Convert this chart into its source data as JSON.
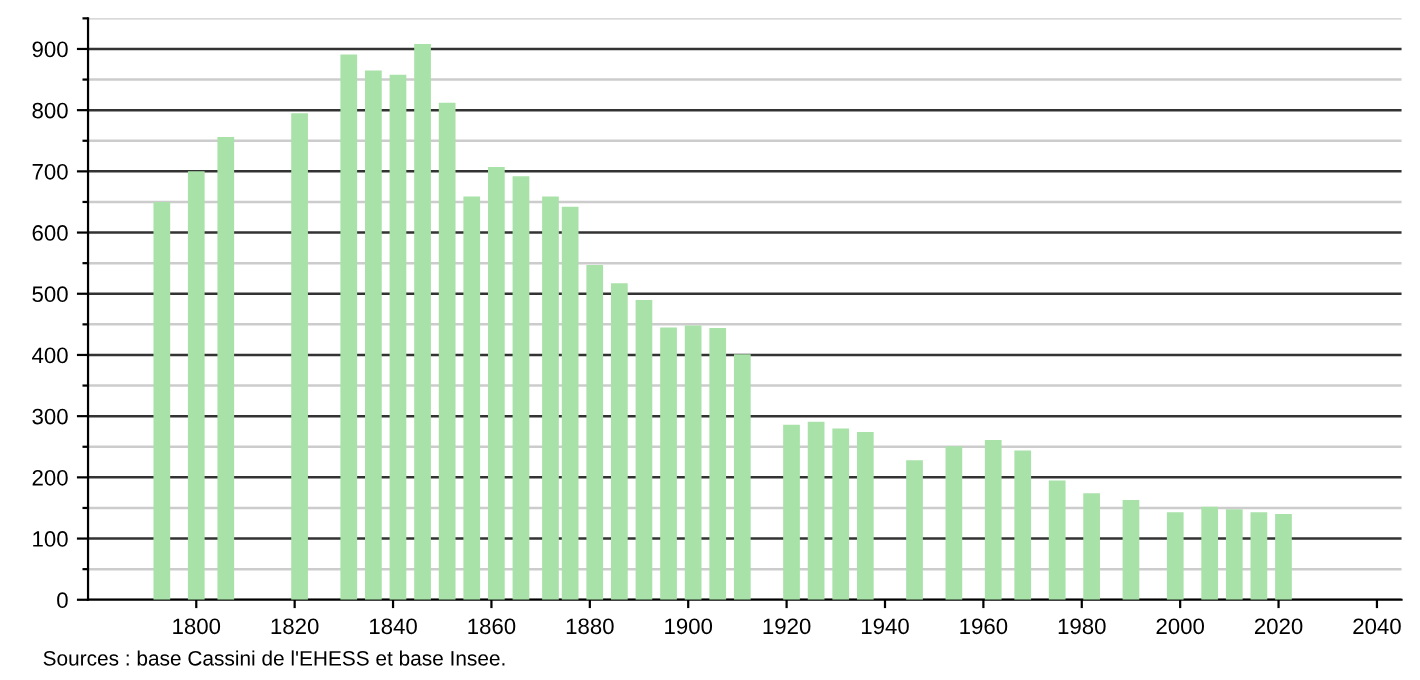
{
  "chart_data": {
    "type": "bar",
    "x": [
      1793,
      1800,
      1806,
      1821,
      1831,
      1836,
      1841,
      1846,
      1851,
      1856,
      1861,
      1866,
      1872,
      1876,
      1881,
      1886,
      1891,
      1896,
      1901,
      1906,
      1911,
      1921,
      1926,
      1931,
      1936,
      1946,
      1954,
      1962,
      1968,
      1975,
      1982,
      1990,
      1999,
      2006,
      2011,
      2016,
      2021
    ],
    "values": [
      650,
      700,
      756,
      795,
      891,
      865,
      858,
      908,
      812,
      659,
      707,
      692,
      659,
      642,
      547,
      517,
      490,
      445,
      448,
      444,
      401,
      286,
      291,
      280,
      274,
      228,
      251,
      261,
      244,
      195,
      174,
      163,
      143,
      152,
      148,
      143,
      140
    ],
    "color": "#a8e2a8",
    "xlim": [
      1778,
      2045
    ],
    "xticks": [
      1800,
      1820,
      1840,
      1860,
      1880,
      1900,
      1920,
      1940,
      1960,
      1980,
      2000,
      2020,
      2040
    ],
    "ylim": [
      0,
      950
    ],
    "yticks": [
      0,
      {
        "value": 50,
        "label": null
      },
      100,
      {
        "value": 150,
        "label": null
      },
      200,
      {
        "value": 250,
        "label": null
      },
      300,
      {
        "value": 350,
        "label": null
      },
      400,
      {
        "value": 450,
        "label": null
      },
      500,
      {
        "value": 550,
        "label": null
      },
      600,
      {
        "value": 650,
        "label": null
      },
      700,
      {
        "value": 750,
        "label": null
      },
      800,
      {
        "value": 850,
        "label": null
      },
      900,
      {
        "value": 950,
        "label": null
      }
    ],
    "grid": "y",
    "annotations": [
      "Sources : base Cassini de l'EHESS et base Insee."
    ]
  }
}
